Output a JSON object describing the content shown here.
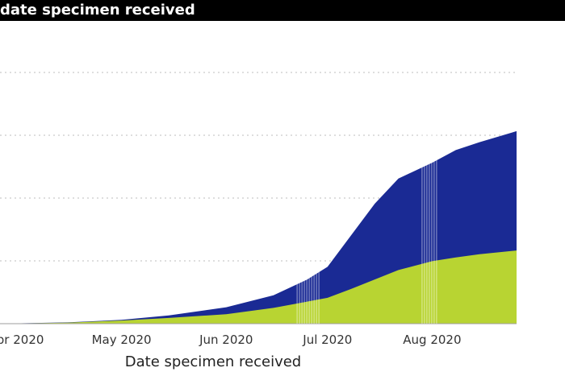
{
  "chart_data": {
    "type": "area",
    "title": "date specimen received",
    "xlabel": "Date specimen received",
    "ylabel": "",
    "x_ticks": [
      "pr 2020",
      "May 2020",
      "Jun 2020",
      "Jul 2020",
      "Aug 2020"
    ],
    "x_tick_dates": [
      "2020-04-01",
      "2020-05-01",
      "2020-06-01",
      "2020-07-01",
      "2020-08-01"
    ],
    "x_range": [
      "2020-03-26",
      "2020-08-26"
    ],
    "y_range": [
      0,
      1
    ],
    "grid": "horizontal-dotted",
    "x": [
      "2020-03-26",
      "2020-04-15",
      "2020-05-01",
      "2020-05-15",
      "2020-06-01",
      "2020-06-15",
      "2020-06-25",
      "2020-07-01",
      "2020-07-08",
      "2020-07-15",
      "2020-07-22",
      "2020-08-01",
      "2020-08-08",
      "2020-08-15",
      "2020-08-26"
    ],
    "series": [
      {
        "color": "#b8d432",
        "values": [
          0.0,
          0.003,
          0.01,
          0.018,
          0.03,
          0.05,
          0.07,
          0.082,
          0.11,
          0.14,
          0.17,
          0.198,
          0.21,
          0.22,
          0.232
        ]
      },
      {
        "color": "#1a2a94",
        "values": [
          0.0,
          0.004,
          0.012,
          0.026,
          0.052,
          0.09,
          0.14,
          0.18,
          0.28,
          0.38,
          0.46,
          0.51,
          0.55,
          0.575,
          0.61
        ]
      }
    ],
    "highlight_ranges": [
      [
        "2020-06-22",
        "2020-06-29"
      ],
      [
        "2020-07-29",
        "2020-08-03"
      ]
    ]
  }
}
